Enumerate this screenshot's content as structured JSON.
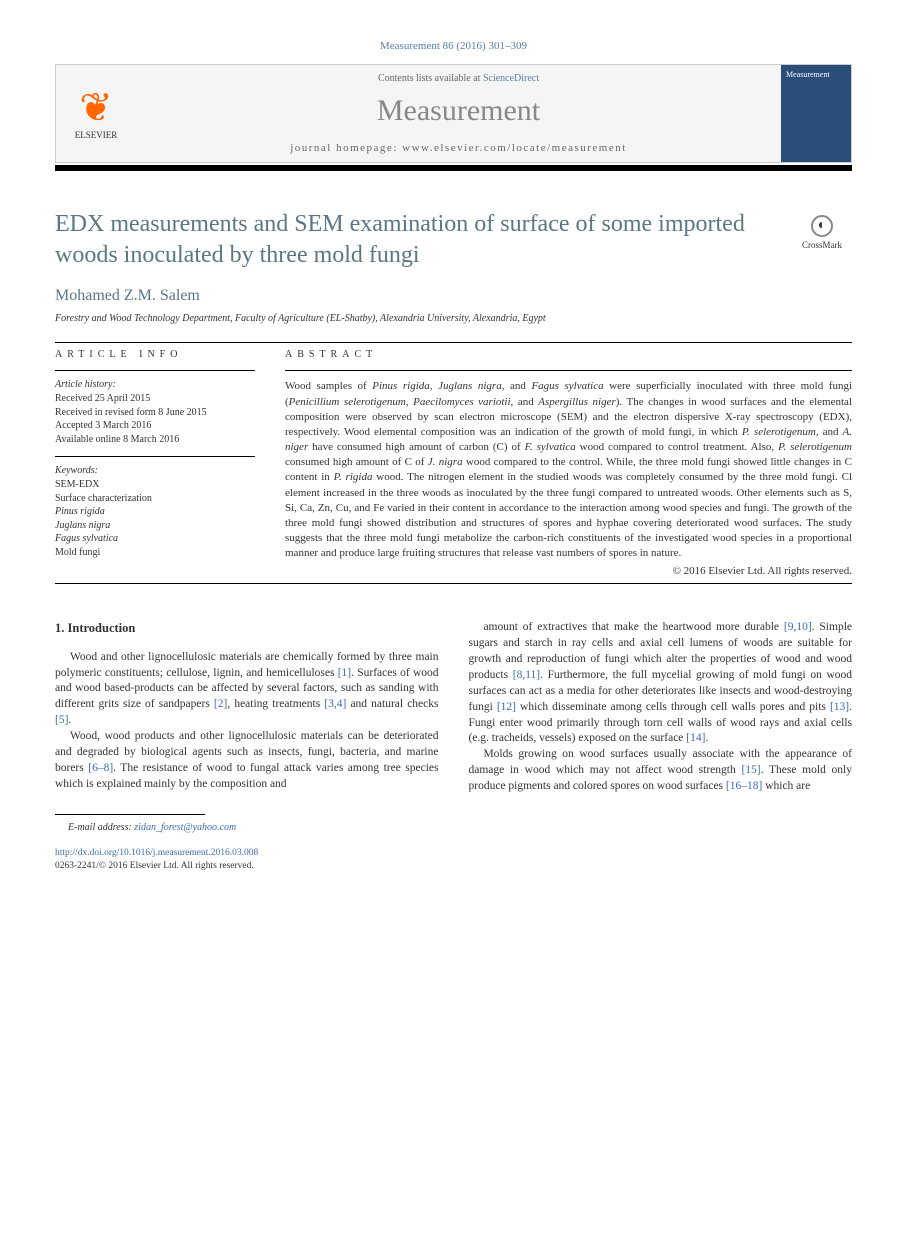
{
  "citation": "Measurement 86 (2016) 301–309",
  "header": {
    "contents_prefix": "Contents lists available at ",
    "contents_link": "ScienceDirect",
    "journal": "Measurement",
    "homepage_prefix": "journal homepage: ",
    "homepage_url": "www.elsevier.com/locate/measurement",
    "publisher": "ELSEVIER",
    "cover_label": "Measurement"
  },
  "crossmark": "CrossMark",
  "title": "EDX measurements and SEM examination of surface of some imported woods inoculated by three mold fungi",
  "author": "Mohamed Z.M. Salem",
  "affiliation": "Forestry and Wood Technology Department, Faculty of Agriculture (EL-Shatby), Alexandria University, Alexandria, Egypt",
  "info": {
    "label": "ARTICLE INFO",
    "history_head": "Article history:",
    "history": [
      "Received 25 April 2015",
      "Received in revised form 8 June 2015",
      "Accepted 3 March 2016",
      "Available online 8 March 2016"
    ],
    "keywords_head": "Keywords:",
    "keywords": [
      {
        "text": "SEM-EDX",
        "italic": false
      },
      {
        "text": "Surface characterization",
        "italic": false
      },
      {
        "text": "Pinus rigida",
        "italic": true
      },
      {
        "text": "Juglans nigra",
        "italic": true
      },
      {
        "text": "Fagus sylvatica",
        "italic": true
      },
      {
        "text": "Mold fungi",
        "italic": false
      }
    ]
  },
  "abstract": {
    "label": "ABSTRACT",
    "text_html": "Wood samples of <span class=\"italic\">Pinus rigida</span>, <span class=\"italic\">Juglans nigra</span>, and <span class=\"italic\">Fagus sylvatica</span> were superficially inoculated with three mold fungi (<span class=\"italic\">Penicillium selerotigenum</span>, <span class=\"italic\">Paecilomyces variotii</span>, and <span class=\"italic\">Aspergillus niger</span>). The changes in wood surfaces and the elemental composition were observed by scan electron microscope (SEM) and the electron dispersive X-ray spectroscopy (EDX), respectively. Wood elemental composition was an indication of the growth of mold fungi, in which <span class=\"italic\">P. selerotigenum</span>, and <span class=\"italic\">A. niger</span> have consumed high amount of carbon (C) of <span class=\"italic\">F. sylvatica</span> wood compared to control treatment. Also, <span class=\"italic\">P. selerotigenum</span> consumed high amount of C of <span class=\"italic\">J. nigra</span> wood compared to the control. While, the three mold fungi showed little changes in C content in <span class=\"italic\">P. rigida</span> wood. The nitrogen element in the studied woods was completely consumed by the three mold fungi. Cl element increased in the three woods as inoculated by the three fungi compared to untreated woods. Other elements such as S, Si, Ca, Zn, Cu, and Fe varied in their content in accordance to the interaction among wood species and fungi. The growth of the three mold fungi showed distribution and structures of spores and hyphae covering deteriorated wood surfaces. The study suggests that the three mold fungi metabolize the carbon-rich constituents of the investigated wood species in a proportional manner and produce large fruiting structures that release vast numbers of spores in nature.",
    "copyright": "© 2016 Elsevier Ltd. All rights reserved."
  },
  "body": {
    "section_heading": "1. Introduction",
    "left_paragraphs": [
      "Wood and other lignocellulosic materials are chemically formed by three main polymeric constituents; cellulose, lignin, and hemicelluloses <span class=\"link\">[1]</span>. Surfaces of wood and wood based-products can be affected by several factors, such as sanding with different grits size of sandpapers <span class=\"link\">[2]</span>, heating treatments <span class=\"link\">[3,4]</span> and natural checks <span class=\"link\">[5]</span>.",
      "Wood, wood products and other lignocellulosic materials can be deteriorated and degraded by biological agents such as insects, fungi, bacteria, and marine borers <span class=\"link\">[6–8]</span>. The resistance of wood to fungal attack varies among tree species which is explained mainly by the composition and"
    ],
    "right_paragraphs": [
      "amount of extractives that make the heartwood more durable <span class=\"link\">[9,10]</span>. Simple sugars and starch in ray cells and axial cell lumens of woods are suitable for growth and reproduction of fungi which alter the properties of wood and wood products <span class=\"link\">[8,11]</span>. Furthermore, the full mycelial growing of mold fungi on wood surfaces can act as a media for other deteriorates like insects and wood-destroying fungi <span class=\"link\">[12]</span> which disseminate among cells through cell walls pores and pits <span class=\"link\">[13]</span>. Fungi enter wood primarily through torn cell walls of wood rays and axial cells (e.g. tracheids, vessels) exposed on the surface <span class=\"link\">[14]</span>.",
      "Molds growing on wood surfaces usually associate with the appearance of damage in wood which may not affect wood strength <span class=\"link\">[15]</span>. These mold only produce pigments and colored spores on wood surfaces <span class=\"link\">[16–18]</span> which are"
    ]
  },
  "footer": {
    "email_label": "E-mail address: ",
    "email": "zidan_forest@yahoo.com",
    "doi": "http://dx.doi.org/10.1016/j.measurement.2016.03.008",
    "issn_line": "0263-2241/© 2016 Elsevier Ltd. All rights reserved."
  },
  "colors": {
    "link": "#3b6db5",
    "heading": "#5a7785",
    "elsevier_orange": "#ff6600",
    "cover_blue": "#2a4d7a"
  }
}
